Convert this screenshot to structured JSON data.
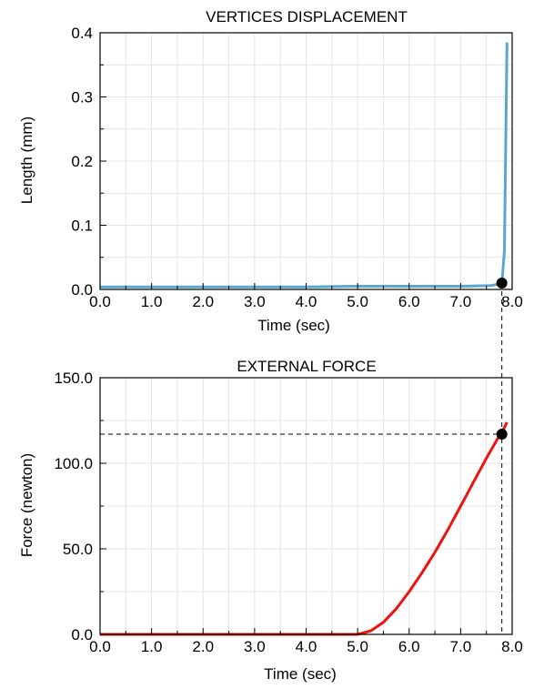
{
  "chart_data": [
    {
      "type": "line",
      "title": "VERTICES DISPLACEMENT",
      "xlabel": "Time (sec)",
      "ylabel": "Length (mm)",
      "xlim": [
        0,
        8
      ],
      "ylim": [
        0,
        0.4
      ],
      "x_ticks": [
        "0.0",
        "1.0",
        "2.0",
        "3.0",
        "4.0",
        "5.0",
        "6.0",
        "7.0",
        "8.0"
      ],
      "y_ticks": [
        "0.0",
        "0.1",
        "0.2",
        "0.3",
        "0.4"
      ],
      "grid": true,
      "series": [
        {
          "color": "#5aa7cc",
          "x": [
            0.0,
            1.0,
            2.0,
            3.0,
            4.0,
            5.0,
            6.0,
            7.0,
            7.6,
            7.8,
            7.85,
            7.9
          ],
          "y": [
            0.004,
            0.004,
            0.004,
            0.004,
            0.004,
            0.005,
            0.005,
            0.005,
            0.006,
            0.01,
            0.06,
            0.385
          ]
        }
      ],
      "marker": {
        "x": 7.8,
        "y": 0.01,
        "color": "#000000"
      }
    },
    {
      "type": "line",
      "title": "EXTERNAL FORCE",
      "xlabel": "Time (sec)",
      "ylabel": "Force (newton)",
      "xlim": [
        0,
        8
      ],
      "ylim": [
        0,
        150
      ],
      "x_ticks": [
        "0.0",
        "1.0",
        "2.0",
        "3.0",
        "4.0",
        "5.0",
        "6.0",
        "7.0",
        "8.0"
      ],
      "y_ticks": [
        "0.0",
        "50.0",
        "100.0",
        "150.0"
      ],
      "grid": true,
      "series": [
        {
          "color": "#ee1111",
          "x": [
            0.0,
            1.0,
            2.0,
            3.0,
            4.0,
            5.0,
            5.25,
            5.5,
            5.75,
            6.0,
            6.25,
            6.5,
            6.75,
            7.0,
            7.25,
            7.5,
            7.75,
            7.8,
            7.9
          ],
          "y": [
            0,
            0,
            0,
            0,
            0,
            0,
            2,
            7,
            15,
            25,
            36,
            48,
            61,
            75,
            89,
            103,
            116,
            118,
            124
          ]
        }
      ],
      "marker": {
        "x": 7.8,
        "y": 117,
        "color": "#000000"
      }
    }
  ]
}
